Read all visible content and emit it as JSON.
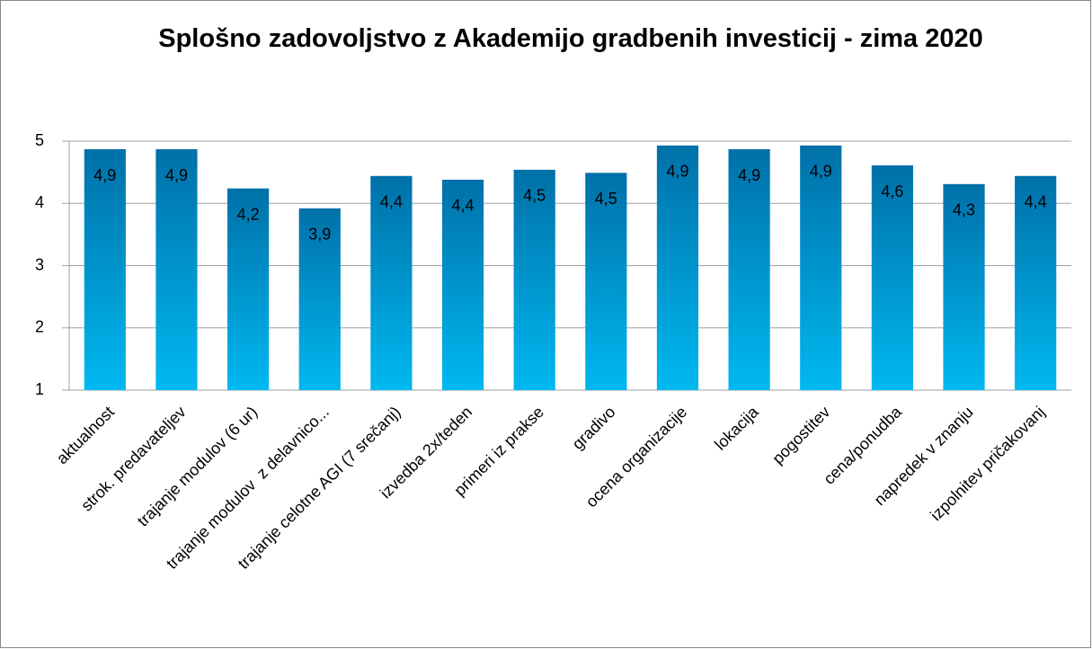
{
  "chart_data": {
    "type": "bar",
    "title": "Splošno zadovoljstvo z Akademijo gradbenih investicij - zima 2020",
    "categories": [
      "aktualnost",
      "strok. predavateljev",
      "trajanje modulov (6 ur)",
      "trajanje modulov  z delavnico...",
      "trajanje celotne AGI (7 srečanj)",
      "izvedba 2x/teden",
      "primeri iz prakse",
      "gradivo",
      "ocena organizacije",
      "lokacija",
      "pogostitev",
      "cena/ponudba",
      "napredek v znanju",
      "izpolnitev pričakovanj"
    ],
    "values": [
      4.87,
      4.87,
      4.24,
      3.92,
      4.44,
      4.38,
      4.54,
      4.49,
      4.93,
      4.87,
      4.93,
      4.61,
      4.31,
      4.44
    ],
    "value_labels": [
      "4,9",
      "4,9",
      "4,2",
      "3,9",
      "4,4",
      "4,4",
      "4,5",
      "4,5",
      "4,9",
      "4,9",
      "4,9",
      "4,6",
      "4,3",
      "4,4"
    ],
    "color": [
      "#0070a8",
      "#00b8f0"
    ],
    "ylim": [
      1,
      5
    ],
    "yticks": [
      1,
      2,
      3,
      4,
      5
    ],
    "grid": true
  }
}
